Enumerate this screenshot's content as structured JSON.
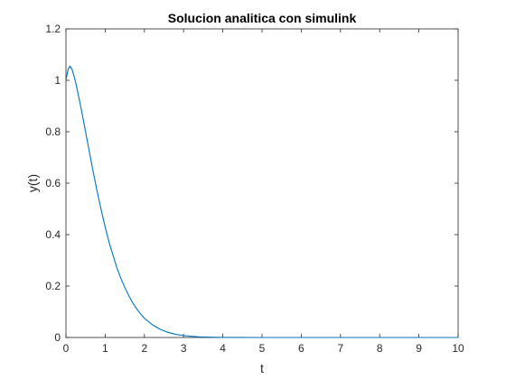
{
  "chart_data": {
    "type": "line",
    "title": "Solucion analitica con simulink",
    "xlabel": "t",
    "ylabel": "y(t)",
    "xlim": [
      0,
      10
    ],
    "ylim": [
      0,
      1.2
    ],
    "xticks": [
      "0",
      "1",
      "2",
      "3",
      "4",
      "5",
      "6",
      "7",
      "8",
      "9",
      "10"
    ],
    "yticks": [
      "0",
      "0.2",
      "0.4",
      "0.6",
      "0.8",
      "1",
      "1.2"
    ],
    "grid": false,
    "line_color": "#0072BD",
    "series": [
      {
        "x": [
          0,
          0.05,
          0.1,
          0.15,
          0.2,
          0.25,
          0.3,
          0.4,
          0.5,
          0.6,
          0.7,
          0.8,
          0.9,
          1.0,
          1.1,
          1.2,
          1.3,
          1.4,
          1.5,
          1.6,
          1.7,
          1.8,
          1.9,
          2.0,
          2.2,
          2.4,
          2.6,
          2.8,
          3.0,
          3.2,
          3.4,
          3.6,
          3.8,
          4.0,
          4.5,
          5.0,
          6.0,
          7.0,
          8.0,
          9.0,
          10.0
        ],
        "values": [
          1.0,
          1.04,
          1.055,
          1.045,
          1.02,
          0.99,
          0.955,
          0.88,
          0.8,
          0.72,
          0.64,
          0.565,
          0.495,
          0.43,
          0.37,
          0.32,
          0.27,
          0.23,
          0.195,
          0.163,
          0.135,
          0.112,
          0.092,
          0.075,
          0.05,
          0.032,
          0.02,
          0.012,
          0.0075,
          0.0045,
          0.0025,
          0.0015,
          0.0008,
          0.0004,
          0.0001,
          0.0,
          0.0,
          0.0,
          0.0,
          0.0,
          0.0
        ]
      }
    ]
  }
}
